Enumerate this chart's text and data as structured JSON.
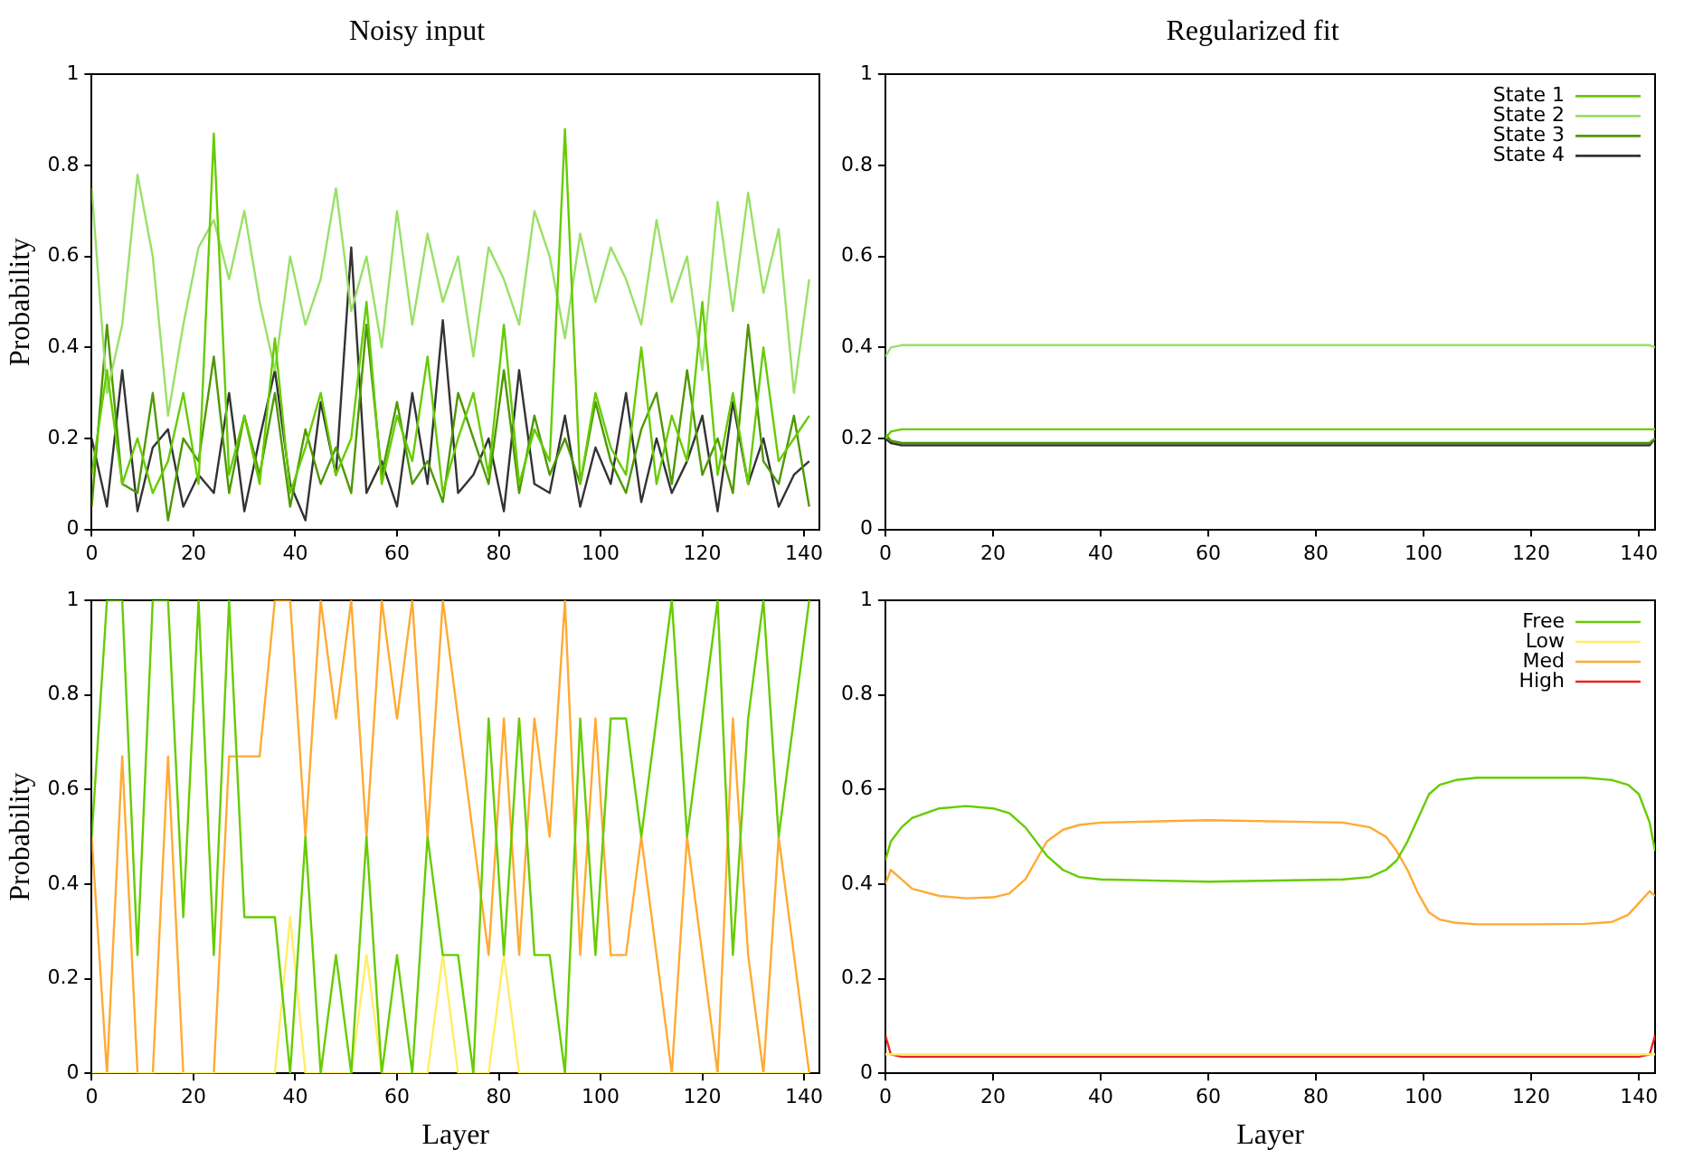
{
  "chart_data": [
    {
      "type": "line",
      "title": "Noisy input",
      "ylabel": "Probability",
      "xlim": [
        0,
        143
      ],
      "ylim": [
        0,
        1
      ],
      "xticks": [
        0,
        20,
        40,
        60,
        80,
        100,
        120,
        140
      ],
      "yticks": [
        0,
        0.2,
        0.4,
        0.6,
        0.8,
        1
      ],
      "grid": false,
      "legend": false,
      "x": [
        0,
        3,
        6,
        9,
        12,
        15,
        18,
        21,
        24,
        27,
        30,
        33,
        36,
        39,
        42,
        45,
        48,
        51,
        54,
        57,
        60,
        63,
        66,
        69,
        72,
        75,
        78,
        81,
        84,
        87,
        90,
        93,
        96,
        99,
        102,
        105,
        108,
        111,
        114,
        117,
        120,
        123,
        126,
        129,
        132,
        135,
        138,
        141
      ],
      "series": [
        {
          "color": "#66cc00",
          "values": [
            0.12,
            0.35,
            0.1,
            0.2,
            0.08,
            0.15,
            0.3,
            0.1,
            0.87,
            0.12,
            0.25,
            0.1,
            0.42,
            0.08,
            0.18,
            0.3,
            0.12,
            0.2,
            0.5,
            0.1,
            0.25,
            0.15,
            0.38,
            0.08,
            0.2,
            0.3,
            0.12,
            0.45,
            0.1,
            0.22,
            0.15,
            0.88,
            0.1,
            0.3,
            0.18,
            0.12,
            0.4,
            0.1,
            0.25,
            0.15,
            0.5,
            0.12,
            0.3,
            0.1,
            0.4,
            0.15,
            0.2,
            0.25
          ]
        },
        {
          "color": "#99e066",
          "values": [
            0.75,
            0.3,
            0.45,
            0.78,
            0.6,
            0.25,
            0.45,
            0.62,
            0.68,
            0.55,
            0.7,
            0.5,
            0.35,
            0.6,
            0.45,
            0.55,
            0.75,
            0.48,
            0.6,
            0.4,
            0.7,
            0.45,
            0.65,
            0.5,
            0.6,
            0.38,
            0.62,
            0.55,
            0.45,
            0.7,
            0.6,
            0.42,
            0.65,
            0.5,
            0.62,
            0.55,
            0.45,
            0.68,
            0.5,
            0.6,
            0.35,
            0.72,
            0.48,
            0.74,
            0.52,
            0.66,
            0.3,
            0.55
          ]
        },
        {
          "color": "#4d9900",
          "values": [
            0.05,
            0.45,
            0.1,
            0.08,
            0.3,
            0.02,
            0.2,
            0.15,
            0.38,
            0.08,
            0.25,
            0.12,
            0.3,
            0.05,
            0.22,
            0.1,
            0.18,
            0.08,
            0.45,
            0.12,
            0.28,
            0.1,
            0.15,
            0.06,
            0.3,
            0.2,
            0.1,
            0.35,
            0.08,
            0.25,
            0.12,
            0.2,
            0.1,
            0.28,
            0.15,
            0.08,
            0.22,
            0.3,
            0.1,
            0.35,
            0.12,
            0.2,
            0.08,
            0.45,
            0.15,
            0.1,
            0.25,
            0.05
          ]
        },
        {
          "color": "#333333",
          "values": [
            0.2,
            0.05,
            0.35,
            0.04,
            0.18,
            0.22,
            0.05,
            0.12,
            0.08,
            0.3,
            0.04,
            0.2,
            0.35,
            0.1,
            0.02,
            0.28,
            0.12,
            0.62,
            0.08,
            0.15,
            0.05,
            0.3,
            0.1,
            0.46,
            0.08,
            0.12,
            0.2,
            0.04,
            0.35,
            0.1,
            0.08,
            0.25,
            0.05,
            0.18,
            0.1,
            0.3,
            0.06,
            0.2,
            0.08,
            0.15,
            0.25,
            0.04,
            0.28,
            0.1,
            0.2,
            0.05,
            0.12,
            0.15
          ]
        }
      ]
    },
    {
      "type": "line",
      "title": "Regularized fit",
      "xlim": [
        0,
        143
      ],
      "ylim": [
        0,
        1
      ],
      "xticks": [
        0,
        20,
        40,
        60,
        80,
        100,
        120,
        140
      ],
      "yticks": [
        0,
        0.2,
        0.4,
        0.6,
        0.8,
        1
      ],
      "grid": false,
      "legend": "top right",
      "x": [
        0,
        1,
        3,
        140,
        142,
        143
      ],
      "series": [
        {
          "name": "State 1",
          "color": "#66cc00",
          "values": [
            0.2,
            0.215,
            0.22,
            0.22,
            0.22,
            0.22
          ]
        },
        {
          "name": "State 2",
          "color": "#99e066",
          "values": [
            0.38,
            0.4,
            0.405,
            0.405,
            0.405,
            0.4
          ]
        },
        {
          "name": "State 3",
          "color": "#4d9900",
          "values": [
            0.21,
            0.195,
            0.19,
            0.19,
            0.19,
            0.2
          ]
        },
        {
          "name": "State 4",
          "color": "#333333",
          "values": [
            0.2,
            0.19,
            0.185,
            0.185,
            0.185,
            0.2
          ]
        }
      ]
    },
    {
      "type": "line",
      "xlabel": "Layer",
      "ylabel": "Probability",
      "xlim": [
        0,
        143
      ],
      "ylim": [
        0,
        1
      ],
      "xticks": [
        0,
        20,
        40,
        60,
        80,
        100,
        120,
        140
      ],
      "yticks": [
        0,
        0.2,
        0.4,
        0.6,
        0.8,
        1
      ],
      "grid": false,
      "legend": false,
      "x": [
        0,
        3,
        6,
        9,
        12,
        15,
        18,
        21,
        24,
        27,
        30,
        33,
        36,
        39,
        42,
        45,
        48,
        51,
        54,
        57,
        60,
        63,
        66,
        69,
        72,
        75,
        78,
        81,
        84,
        87,
        90,
        93,
        96,
        99,
        102,
        105,
        108,
        111,
        114,
        117,
        120,
        123,
        126,
        129,
        132,
        135,
        138,
        141
      ],
      "series": [
        {
          "color": "#66cc00",
          "values": [
            0.5,
            1,
            1,
            0.25,
            1,
            1,
            0.33,
            1,
            0.25,
            1,
            0.33,
            0.33,
            0.33,
            0,
            0.5,
            0,
            0.25,
            0,
            0.5,
            0,
            0.25,
            0,
            0.5,
            0.25,
            0.25,
            0,
            0.75,
            0.25,
            0.75,
            0.25,
            0.25,
            0,
            0.75,
            0.25,
            0.75,
            0.75,
            0.5,
            0.75,
            1,
            0.5,
            0.75,
            1,
            0.25,
            0.75,
            1,
            0.5,
            0.75,
            1
          ]
        },
        {
          "color": "#ffee66",
          "values": [
            0,
            0,
            0,
            0,
            0,
            0,
            0,
            0,
            0,
            0,
            0,
            0,
            0,
            0.33,
            0,
            0,
            0,
            0,
            0.25,
            0,
            0,
            0,
            0,
            0.25,
            0,
            0,
            0,
            0.25,
            0,
            0,
            0,
            0,
            0,
            0,
            0,
            0,
            0,
            0,
            0,
            0,
            0,
            0,
            0,
            0,
            0,
            0,
            0,
            0
          ]
        },
        {
          "color": "#ffaa33",
          "values": [
            0.5,
            0,
            0.67,
            0,
            0,
            0.67,
            0,
            0,
            0,
            0.67,
            0.67,
            0.67,
            1,
            1,
            0.5,
            1,
            0.75,
            1,
            0.5,
            1,
            0.75,
            1,
            0.5,
            1,
            0.75,
            0.5,
            0.25,
            0.75,
            0.25,
            0.75,
            0.5,
            1,
            0.25,
            0.75,
            0.25,
            0.25,
            0.5,
            0.25,
            0,
            0.5,
            0.25,
            0,
            0.75,
            0.25,
            0,
            0.5,
            0.25,
            0
          ]
        }
      ]
    },
    {
      "type": "line",
      "xlabel": "Layer",
      "xlim": [
        0,
        143
      ],
      "ylim": [
        0,
        1
      ],
      "xticks": [
        0,
        20,
        40,
        60,
        80,
        100,
        120,
        140
      ],
      "yticks": [
        0,
        0.2,
        0.4,
        0.6,
        0.8,
        1
      ],
      "grid": false,
      "legend": "top right",
      "x": [
        0,
        1,
        3,
        5,
        10,
        15,
        20,
        23,
        26,
        28,
        30,
        33,
        36,
        40,
        60,
        85,
        90,
        93,
        95,
        97,
        99,
        101,
        103,
        106,
        110,
        120,
        130,
        135,
        138,
        140,
        142,
        143
      ],
      "series": [
        {
          "name": "Free",
          "color": "#66cc00",
          "values": [
            0.45,
            0.49,
            0.52,
            0.54,
            0.56,
            0.565,
            0.56,
            0.55,
            0.52,
            0.49,
            0.46,
            0.43,
            0.415,
            0.41,
            0.405,
            0.41,
            0.415,
            0.43,
            0.45,
            0.49,
            0.54,
            0.59,
            0.61,
            0.62,
            0.625,
            0.625,
            0.625,
            0.62,
            0.61,
            0.59,
            0.53,
            0.47
          ]
        },
        {
          "name": "Low",
          "color": "#ffee66",
          "values": [
            0.04,
            0.04,
            0.04,
            0.04,
            0.04,
            0.04,
            0.04,
            0.04,
            0.04,
            0.04,
            0.04,
            0.04,
            0.04,
            0.04,
            0.04,
            0.04,
            0.04,
            0.04,
            0.04,
            0.04,
            0.04,
            0.04,
            0.04,
            0.04,
            0.04,
            0.04,
            0.04,
            0.04,
            0.04,
            0.04,
            0.04,
            0.04
          ]
        },
        {
          "name": "Med",
          "color": "#ffaa33",
          "values": [
            0.4,
            0.43,
            0.41,
            0.39,
            0.375,
            0.37,
            0.372,
            0.38,
            0.41,
            0.45,
            0.49,
            0.515,
            0.525,
            0.53,
            0.535,
            0.53,
            0.52,
            0.5,
            0.47,
            0.43,
            0.38,
            0.34,
            0.325,
            0.318,
            0.315,
            0.315,
            0.316,
            0.32,
            0.335,
            0.36,
            0.385,
            0.375
          ]
        },
        {
          "name": "High",
          "color": "#ee2222",
          "values": [
            0.08,
            0.04,
            0.035,
            0.035,
            0.035,
            0.035,
            0.035,
            0.035,
            0.035,
            0.035,
            0.035,
            0.035,
            0.035,
            0.035,
            0.035,
            0.035,
            0.035,
            0.035,
            0.035,
            0.035,
            0.035,
            0.035,
            0.035,
            0.035,
            0.035,
            0.035,
            0.035,
            0.035,
            0.035,
            0.035,
            0.04,
            0.08
          ]
        }
      ]
    }
  ]
}
